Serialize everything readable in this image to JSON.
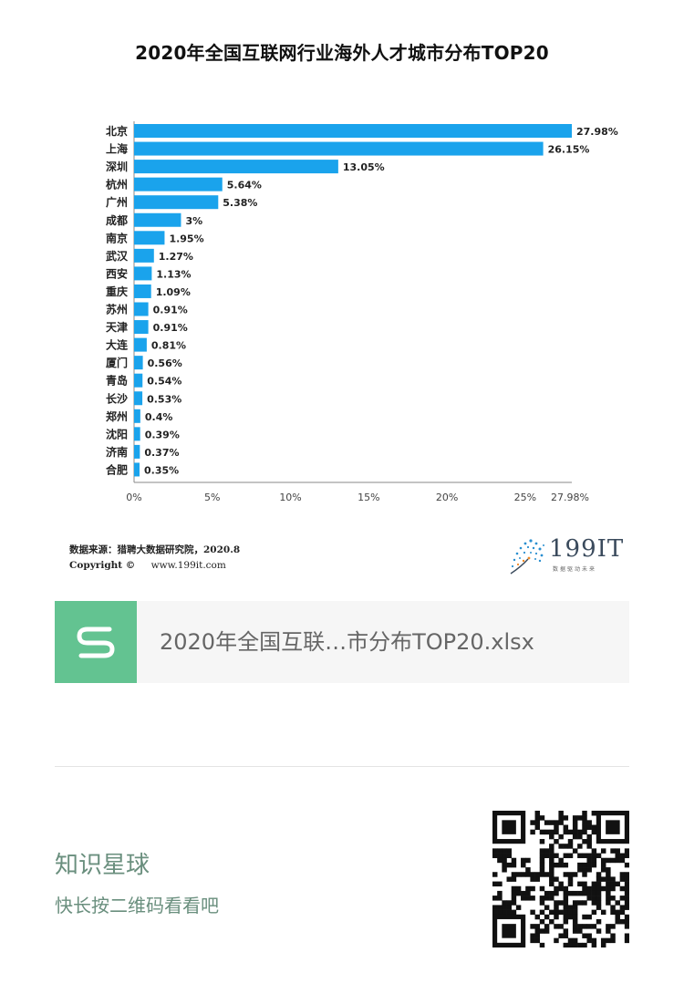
{
  "chart_data": {
    "type": "bar",
    "orientation": "horizontal",
    "title": "2020年全国互联网行业海外人才城市分布TOP20",
    "categories": [
      "北京",
      "上海",
      "深圳",
      "杭州",
      "广州",
      "成都",
      "南京",
      "武汉",
      "西安",
      "重庆",
      "苏州",
      "天津",
      "大连",
      "厦门",
      "青岛",
      "长沙",
      "郑州",
      "沈阳",
      "济南",
      "合肥"
    ],
    "values": [
      27.98,
      26.15,
      13.05,
      5.64,
      5.38,
      3,
      1.95,
      1.27,
      1.13,
      1.09,
      0.91,
      0.91,
      0.81,
      0.56,
      0.54,
      0.53,
      0.4,
      0.39,
      0.37,
      0.35
    ],
    "value_labels": [
      "27.98%",
      "26.15%",
      "13.05%",
      "5.64%",
      "5.38%",
      "3%",
      "1.95%",
      "1.27%",
      "1.13%",
      "1.09%",
      "0.91%",
      "0.91%",
      "0.81%",
      "0.56%",
      "0.54%",
      "0.53%",
      "0.4%",
      "0.39%",
      "0.37%",
      "0.35%"
    ],
    "x_ticks": [
      0,
      5,
      10,
      15,
      20,
      25,
      27.98
    ],
    "x_tick_labels": [
      "0%",
      "5%",
      "10%",
      "15%",
      "20%",
      "25%",
      "27.98%"
    ],
    "xlim": [
      0,
      27.98
    ],
    "xlabel": "",
    "ylabel": "",
    "grid": false,
    "bar_color": "#1aa3ec"
  },
  "source": {
    "text": "数据来源：猎聘大数据研究院，2020.8",
    "copyright_label": "Copyright ©",
    "url": "www.199it.com"
  },
  "logo": {
    "text": "199IT",
    "slogan": "数据驱动未来"
  },
  "file_card": {
    "icon_letter": "S",
    "filename": "2020年全国互联…市分布TOP20.xlsx",
    "icon_color": "#63c391"
  },
  "promo": {
    "title": "知识星球",
    "hint": "快长按二维码看看吧"
  }
}
